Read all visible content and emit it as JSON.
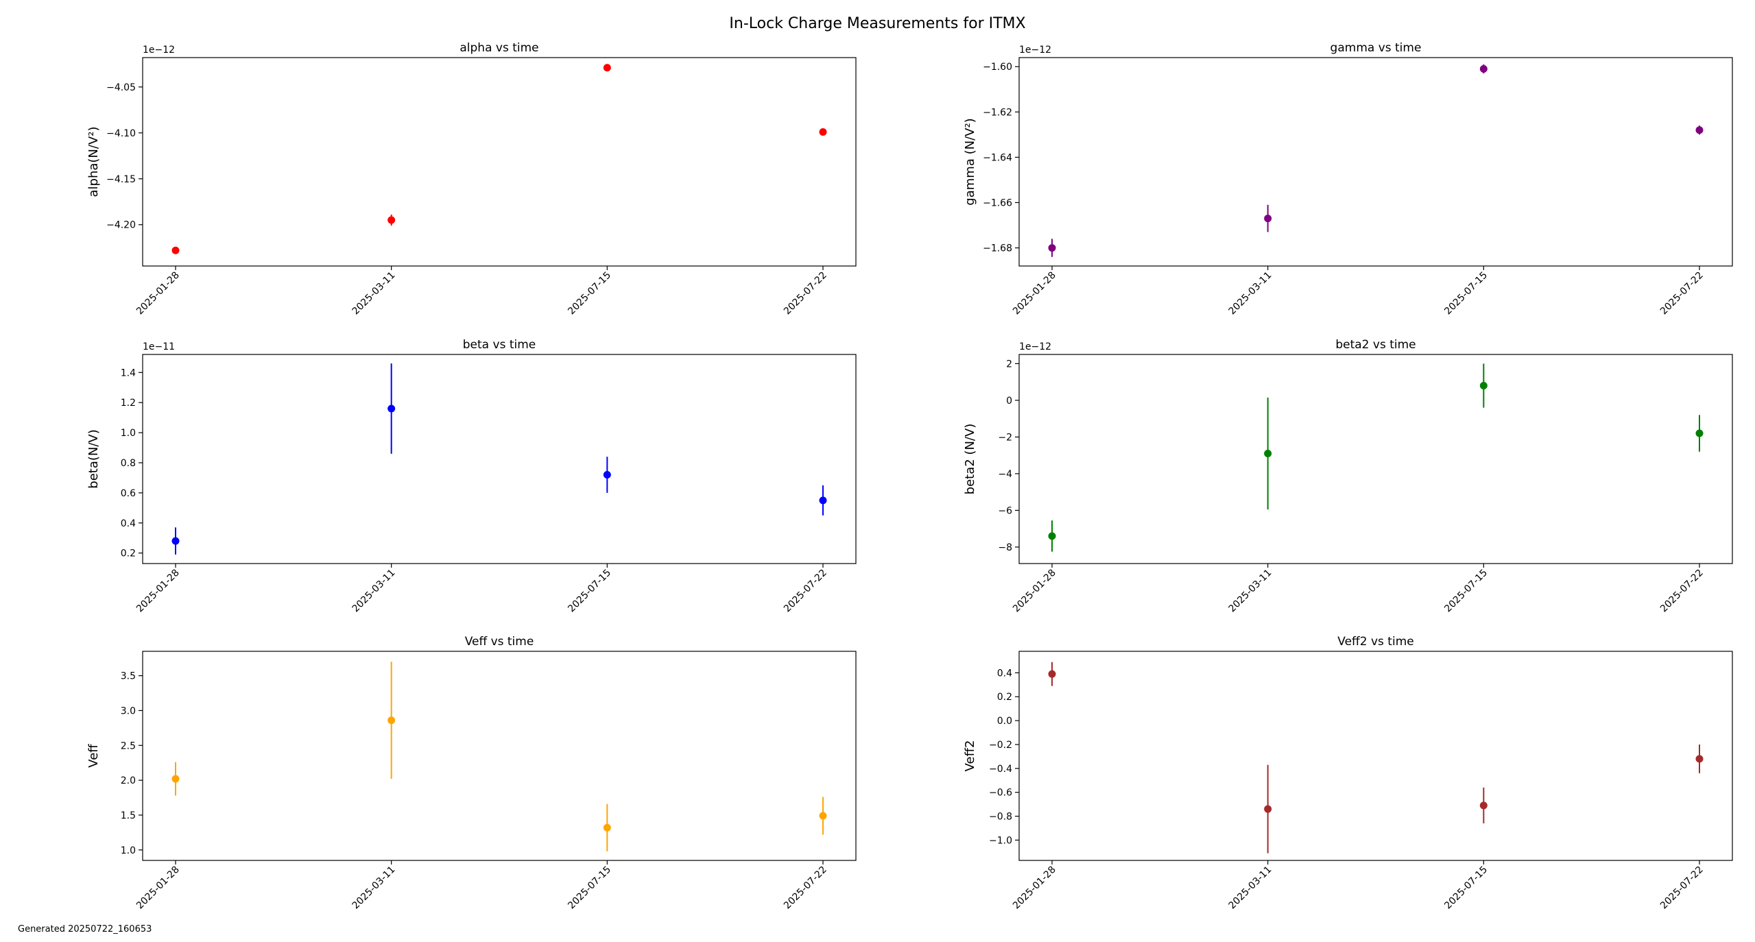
{
  "figure": {
    "suptitle": "In-Lock Charge Measurements for ITMX",
    "footer": "Generated 20250722_160653"
  },
  "chart_data": [
    {
      "type": "scatter",
      "title": "alpha vs time",
      "ylabel": "alpha(N/V²)",
      "offset_label": "1e−12",
      "color": "#ff0000",
      "x": [
        "2025-01-28",
        "2025-03-11",
        "2025-07-15",
        "2025-07-22"
      ],
      "y": [
        -4.228,
        -4.195,
        -4.029,
        -4.099
      ],
      "yerr": [
        0.002,
        0.006,
        0.002,
        0.002
      ],
      "ylim": [
        -4.245,
        -4.018
      ],
      "yticks": [
        -4.2,
        -4.15,
        -4.1,
        -4.05
      ],
      "ytick_labels": [
        "−4.20",
        "−4.15",
        "−4.10",
        "−4.05"
      ]
    },
    {
      "type": "scatter",
      "title": "gamma vs time",
      "ylabel": "gamma (N/V²)",
      "offset_label": "1e−12",
      "color": "#800080",
      "x": [
        "2025-01-28",
        "2025-03-11",
        "2025-07-15",
        "2025-07-22"
      ],
      "y": [
        -1.68,
        -1.667,
        -1.601,
        -1.628
      ],
      "yerr": [
        0.004,
        0.006,
        0.002,
        0.002
      ],
      "ylim": [
        -1.688,
        -1.596
      ],
      "yticks": [
        -1.68,
        -1.66,
        -1.64,
        -1.62,
        -1.6
      ],
      "ytick_labels": [
        "−1.68",
        "−1.66",
        "−1.64",
        "−1.62",
        "−1.60"
      ]
    },
    {
      "type": "scatter",
      "title": "beta vs time",
      "ylabel": "beta(N/V)",
      "offset_label": "1e−11",
      "color": "#0000ff",
      "x": [
        "2025-01-28",
        "2025-03-11",
        "2025-07-15",
        "2025-07-22"
      ],
      "y": [
        0.28,
        1.16,
        0.72,
        0.55
      ],
      "yerr": [
        0.09,
        0.3,
        0.12,
        0.1
      ],
      "ylim": [
        0.13,
        1.52
      ],
      "yticks": [
        0.2,
        0.4,
        0.6,
        0.8,
        1.0,
        1.2,
        1.4
      ],
      "ytick_labels": [
        "0.2",
        "0.4",
        "0.6",
        "0.8",
        "1.0",
        "1.2",
        "1.4"
      ]
    },
    {
      "type": "scatter",
      "title": "beta2 vs time",
      "ylabel": "beta2 (N/V)",
      "offset_label": "1e−12",
      "color": "#008000",
      "x": [
        "2025-01-28",
        "2025-03-11",
        "2025-07-15",
        "2025-07-22"
      ],
      "y": [
        -7.4,
        -2.9,
        0.8,
        -1.8
      ],
      "yerr": [
        0.85,
        3.05,
        1.2,
        1.0
      ],
      "ylim": [
        -8.9,
        2.5
      ],
      "yticks": [
        -8,
        -6,
        -4,
        -2,
        0,
        2
      ],
      "ytick_labels": [
        "−8",
        "−6",
        "−4",
        "−2",
        "0",
        "2"
      ]
    },
    {
      "type": "scatter",
      "title": "Veff vs time",
      "ylabel": "Veff",
      "offset_label": "",
      "color": "#ffa500",
      "x": [
        "2025-01-28",
        "2025-03-11",
        "2025-07-15",
        "2025-07-22"
      ],
      "y": [
        2.02,
        2.86,
        1.32,
        1.49
      ],
      "yerr": [
        0.24,
        0.84,
        0.34,
        0.27
      ],
      "ylim": [
        0.85,
        3.85
      ],
      "yticks": [
        1.0,
        1.5,
        2.0,
        2.5,
        3.0,
        3.5
      ],
      "ytick_labels": [
        "1.0",
        "1.5",
        "2.0",
        "2.5",
        "3.0",
        "3.5"
      ]
    },
    {
      "type": "scatter",
      "title": "Veff2 vs time",
      "ylabel": "Veff2",
      "offset_label": "",
      "color": "#a52a2a",
      "x": [
        "2025-01-28",
        "2025-03-11",
        "2025-07-15",
        "2025-07-22"
      ],
      "y": [
        0.39,
        -0.74,
        -0.71,
        -0.32
      ],
      "yerr": [
        0.1,
        0.37,
        0.15,
        0.12
      ],
      "ylim": [
        -1.17,
        0.58
      ],
      "yticks": [
        -1.0,
        -0.8,
        -0.6,
        -0.4,
        -0.2,
        0.0,
        0.2,
        0.4
      ],
      "ytick_labels": [
        "−1.0",
        "−0.8",
        "−0.6",
        "−0.4",
        "−0.2",
        "0.0",
        "0.2",
        "0.4"
      ]
    }
  ]
}
